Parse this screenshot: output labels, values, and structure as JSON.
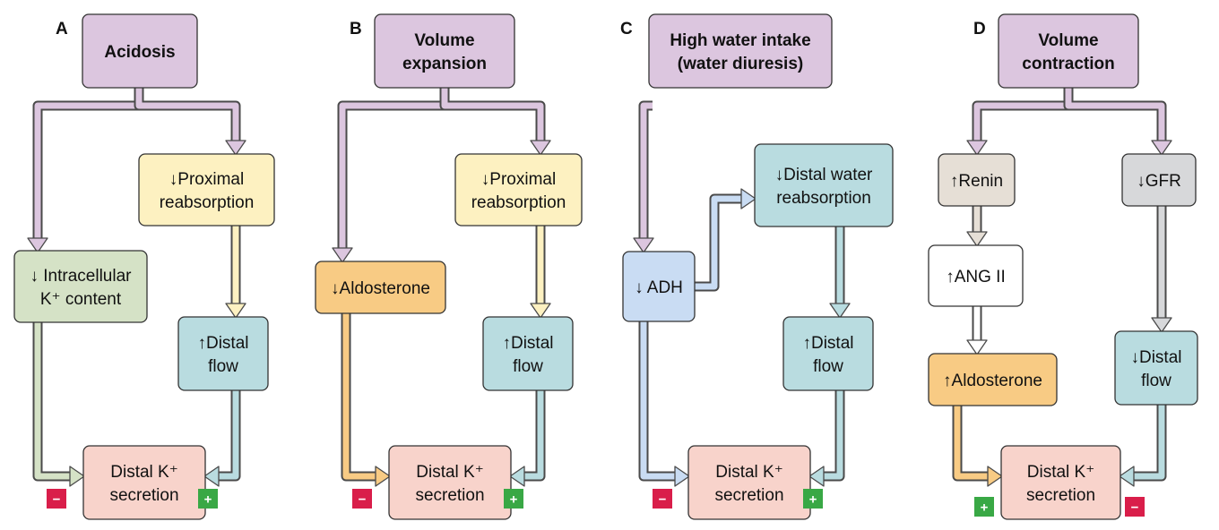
{
  "colors": {
    "purple": "#dcc6df",
    "yellow": "#fdf1c1",
    "green": "#d5e2c6",
    "teal": "#b9dce0",
    "pink": "#f8d3cb",
    "orange": "#f8cb84",
    "blue": "#c9dcf3",
    "beige": "#e6dfd6",
    "white": "#ffffff",
    "gray": "#d7d8da",
    "minus": "#d91e4a",
    "plus": "#39a845"
  },
  "panels": [
    {
      "letter": "A",
      "stimulus": [
        "Acidosis"
      ],
      "boxes": [
        {
          "id": "proximal",
          "lines": [
            "↓Proximal",
            "reabsorption"
          ]
        },
        {
          "id": "intracellular",
          "lines": [
            "↓ Intracellular",
            "K⁺ content"
          ]
        },
        {
          "id": "flow",
          "lines": [
            "↑Distal",
            "flow"
          ]
        },
        {
          "id": "secretion",
          "lines": [
            "Distal K⁺",
            "secretion"
          ]
        }
      ],
      "signs": {
        "left": "−",
        "right": "+"
      }
    },
    {
      "letter": "B",
      "stimulus": [
        "Volume",
        "expansion"
      ],
      "boxes": [
        {
          "id": "proximal",
          "lines": [
            "↓Proximal",
            "reabsorption"
          ]
        },
        {
          "id": "aldosterone",
          "lines": [
            "↓Aldosterone"
          ]
        },
        {
          "id": "flow",
          "lines": [
            "↑Distal",
            "flow"
          ]
        },
        {
          "id": "secretion",
          "lines": [
            "Distal K⁺",
            "secretion"
          ]
        }
      ],
      "signs": {
        "left": "−",
        "right": "+"
      }
    },
    {
      "letter": "C",
      "stimulus": [
        "High water intake",
        "(water diuresis)"
      ],
      "boxes": [
        {
          "id": "distal-water",
          "lines": [
            "↓Distal water",
            "reabsorption"
          ]
        },
        {
          "id": "adh",
          "lines": [
            "↓ ADH"
          ]
        },
        {
          "id": "flow",
          "lines": [
            "↑Distal",
            "flow"
          ]
        },
        {
          "id": "secretion",
          "lines": [
            "Distal K⁺",
            "secretion"
          ]
        }
      ],
      "signs": {
        "left": "−",
        "right": "+"
      }
    },
    {
      "letter": "D",
      "stimulus": [
        "Volume",
        "contraction"
      ],
      "boxes": [
        {
          "id": "renin",
          "lines": [
            "↑Renin"
          ]
        },
        {
          "id": "gfr",
          "lines": [
            "↓GFR"
          ]
        },
        {
          "id": "ang",
          "lines": [
            "↑ANG II"
          ]
        },
        {
          "id": "aldosterone",
          "lines": [
            "↑Aldosterone"
          ]
        },
        {
          "id": "flow",
          "lines": [
            "↓Distal",
            "flow"
          ]
        },
        {
          "id": "secretion",
          "lines": [
            "Distal K⁺",
            "secretion"
          ]
        }
      ],
      "signs": {
        "left": "+",
        "right": "−"
      }
    }
  ]
}
